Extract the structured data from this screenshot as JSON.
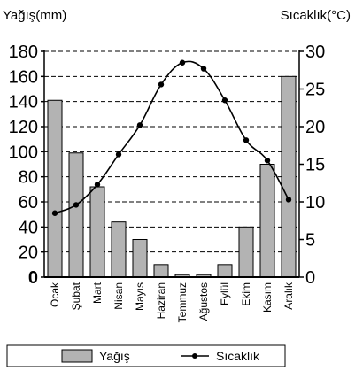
{
  "chart_data": {
    "type": "bar",
    "categories": [
      "Ocak",
      "Şubat",
      "Mart",
      "Nisan",
      "Mayıs",
      "Haziran",
      "Temmuz",
      "Ağustos",
      "Eylül",
      "Ekim",
      "Kasım",
      "Aralık"
    ],
    "series": [
      {
        "name": "Yağış",
        "type": "bar",
        "axis": "left",
        "color": "#b3b3b3",
        "values": [
          141,
          99,
          72,
          44,
          30,
          10,
          2,
          2,
          10,
          40,
          90,
          160
        ]
      },
      {
        "name": "Sıcaklık",
        "type": "line",
        "axis": "right",
        "color": "#000000",
        "values": [
          8.5,
          9.6,
          12.3,
          16.3,
          20.2,
          25.6,
          28.5,
          27.7,
          23.5,
          18.2,
          15.5,
          10.3
        ]
      }
    ],
    "ylabel_left": "Yağış(mm)",
    "ylabel_right": "Sıcaklık(°C)",
    "ylim_left": [
      0,
      180
    ],
    "ylim_right": [
      0,
      30
    ],
    "yticks_left": [
      0,
      20,
      40,
      60,
      80,
      100,
      120,
      140,
      160,
      180
    ],
    "yticks_right": [
      0,
      5,
      10,
      15,
      20,
      25,
      30
    ],
    "grid": "dashed-horizontal",
    "legend_position": "bottom",
    "legend": [
      "Yağış",
      "Sıcaklık"
    ]
  }
}
